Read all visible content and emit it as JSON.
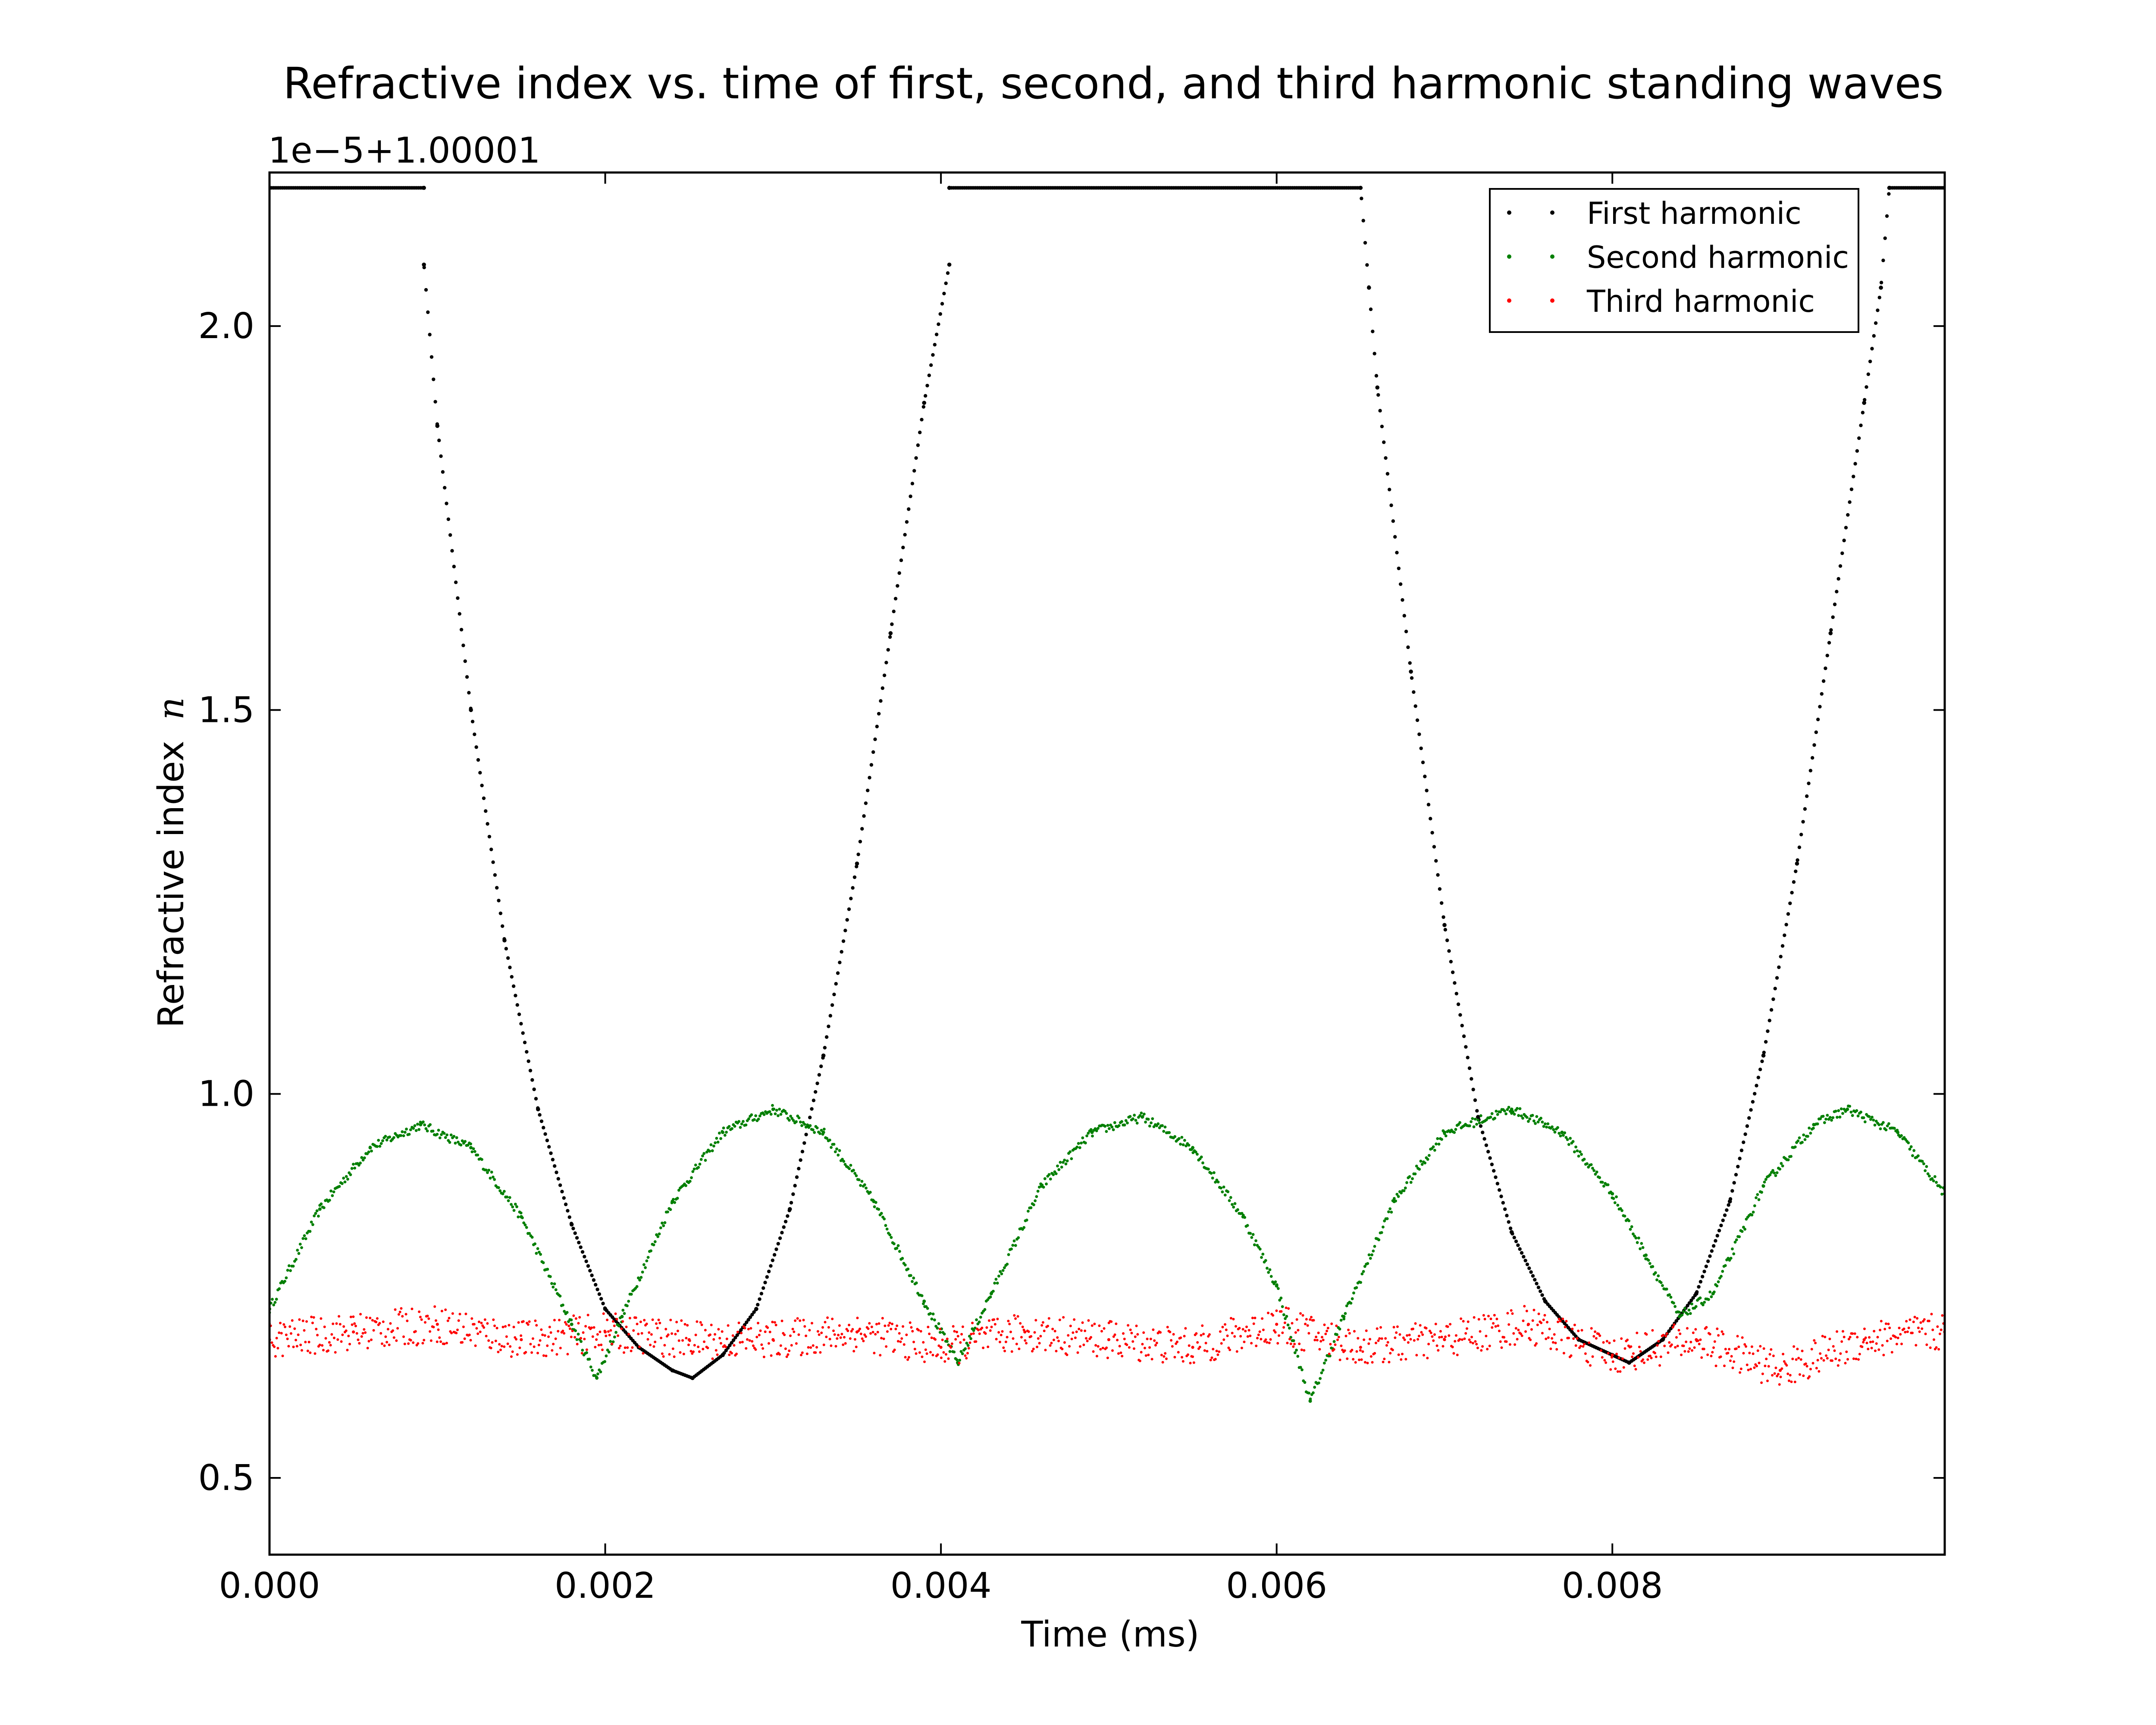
{
  "chart_data": {
    "type": "scatter",
    "title": "Refractive index vs. time of first, second, and third harmonic standing waves",
    "xlabel": "Time (ms)",
    "ylabel": "Refractive index",
    "ylabel_symbol": "n",
    "offset_text": "1e−5+1.00001",
    "xlim": [
      0,
      0.00998
    ],
    "ylim": [
      0.4,
      2.2
    ],
    "x_ticks": [
      0,
      0.002,
      0.004,
      0.006,
      0.008
    ],
    "x_tick_labels": [
      "0.000",
      "0.002",
      "0.004",
      "0.006",
      "0.008"
    ],
    "y_ticks": [
      0.5,
      1.0,
      1.5,
      2.0
    ],
    "y_tick_labels": [
      "0.5",
      "1.0",
      "1.5",
      "2.0"
    ],
    "grid": false,
    "legend_position": "top-right",
    "series": [
      {
        "name": "First harmonic",
        "color": "#000000",
        "marker": "point",
        "description": "Parabolic arcs between wrap-around jumps; values above the axis limit are clipped at the top edge.",
        "x": [
          0,
          0.00092,
          0.00092,
          0.001,
          0.0012,
          0.0014,
          0.0016,
          0.0018,
          0.002,
          0.0022,
          0.0024,
          0.00252,
          0.0027,
          0.0029,
          0.0031,
          0.0033,
          0.0035,
          0.0037,
          0.0039,
          0.00405,
          0.00405,
          0.0065,
          0.00655,
          0.0066,
          0.0068,
          0.007,
          0.0072,
          0.0074,
          0.0076,
          0.0078,
          0.008,
          0.0081,
          0.0083,
          0.0085,
          0.0087,
          0.0089,
          0.0091,
          0.0093,
          0.0095,
          0.0096,
          0.00965,
          0.00998
        ],
        "y": [
          2.18,
          2.18,
          2.08,
          1.87,
          1.5,
          1.2,
          0.98,
          0.83,
          0.72,
          0.67,
          0.64,
          0.63,
          0.66,
          0.72,
          0.85,
          1.05,
          1.3,
          1.6,
          1.9,
          2.08,
          2.18,
          2.18,
          2.05,
          1.92,
          1.55,
          1.22,
          0.97,
          0.82,
          0.73,
          0.68,
          0.66,
          0.65,
          0.68,
          0.74,
          0.86,
          1.05,
          1.3,
          1.6,
          1.9,
          2.05,
          2.18,
          2.18
        ]
      },
      {
        "name": "Second harmonic",
        "color": "#007f00",
        "marker": "point",
        "description": "Series of rectified sinusoid arcs with peaks near 0.97 and sharp dips near 0.63.",
        "x": [
          0,
          0.0003,
          0.0006,
          0.0009,
          0.0012,
          0.0015,
          0.0018,
          0.00195,
          0.0021,
          0.0024,
          0.0027,
          0.003,
          0.0033,
          0.0036,
          0.0039,
          0.0041,
          0.0043,
          0.0046,
          0.0049,
          0.0052,
          0.0055,
          0.0058,
          0.006,
          0.0062,
          0.0064,
          0.0067,
          0.007,
          0.0074,
          0.0077,
          0.008,
          0.0082,
          0.0084,
          0.0086,
          0.0089,
          0.0092,
          0.0094,
          0.0097,
          0.00998
        ],
        "y": [
          0.72,
          0.85,
          0.93,
          0.96,
          0.93,
          0.84,
          0.7,
          0.63,
          0.71,
          0.86,
          0.95,
          0.98,
          0.95,
          0.86,
          0.73,
          0.65,
          0.74,
          0.88,
          0.95,
          0.97,
          0.93,
          0.84,
          0.75,
          0.6,
          0.71,
          0.86,
          0.95,
          0.98,
          0.95,
          0.87,
          0.79,
          0.71,
          0.74,
          0.88,
          0.96,
          0.98,
          0.95,
          0.87
        ]
      },
      {
        "name": "Third harmonic",
        "color": "#ff0000",
        "marker": "point",
        "description": "Noisy oscillating band of points between about 0.6 and 0.72.",
        "x": [
          0,
          0.0005,
          0.001,
          0.0015,
          0.002,
          0.0025,
          0.003,
          0.0035,
          0.004,
          0.0045,
          0.005,
          0.0055,
          0.006,
          0.0065,
          0.007,
          0.0075,
          0.008,
          0.0085,
          0.009,
          0.0095,
          0.00998
        ],
        "y": [
          0.68,
          0.69,
          0.7,
          0.68,
          0.69,
          0.68,
          0.68,
          0.69,
          0.67,
          0.69,
          0.68,
          0.67,
          0.7,
          0.67,
          0.68,
          0.7,
          0.66,
          0.68,
          0.64,
          0.68,
          0.69
        ]
      }
    ]
  }
}
